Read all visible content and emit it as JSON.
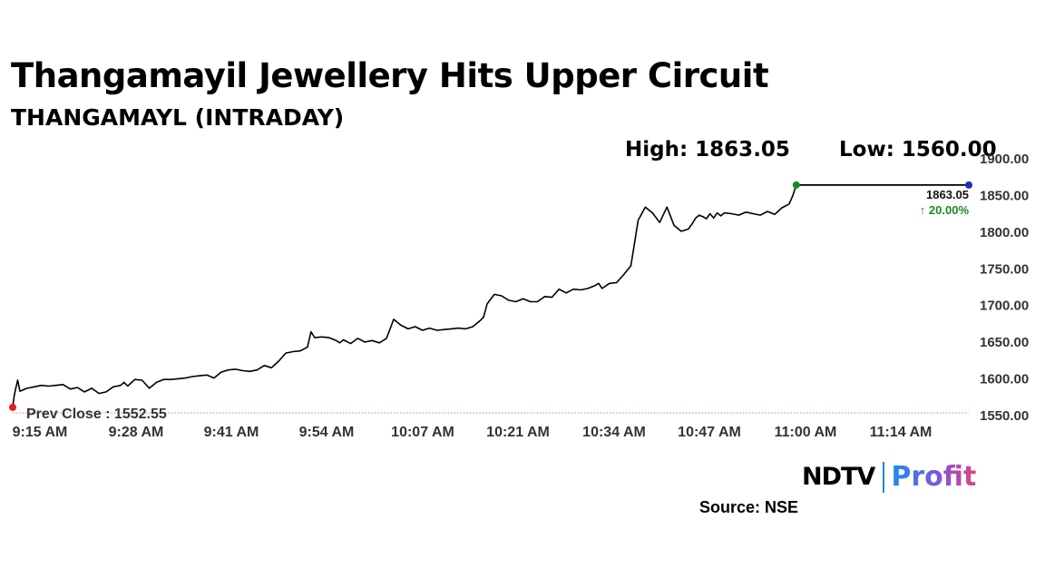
{
  "title": "Thangamayil Jewellery Hits Upper Circuit",
  "subtitle": "THANGAMAYL (INTRADAY)",
  "high_label": "High: 1863.05",
  "low_label": "Low: 1560.00",
  "source": "Source: NSE",
  "brand": {
    "ndtv": "NDTV",
    "profit": "Profit"
  },
  "colors": {
    "line": "#000000",
    "open_marker": "#e01f1f",
    "high_marker": "#1a8a1a",
    "last_marker": "#1a2fb8",
    "prev_close_line": "#e07a7a",
    "change_up": "#1a8a1a"
  },
  "chart_data": {
    "type": "line",
    "title": "Thangamayil Jewellery Hits Upper Circuit",
    "subtitle": "THANGAMAYL (INTRADAY)",
    "x_tick_labels": [
      "9:15 AM",
      "9:28 AM",
      "9:41 AM",
      "9:54 AM",
      "10:07 AM",
      "10:21 AM",
      "10:34 AM",
      "10:47 AM",
      "11:00 AM",
      "11:14 AM"
    ],
    "x_minutes_range": [
      555,
      688
    ],
    "y_ticks": [
      1550,
      1600,
      1650,
      1700,
      1750,
      1800,
      1850,
      1900
    ],
    "y_tick_labels": [
      "1550.00",
      "1600.00",
      "1650.00",
      "1700.00",
      "1750.00",
      "1800.00",
      "1850.00",
      "1900.00"
    ],
    "ylim": [
      1550,
      1900
    ],
    "y_axis_side": "right",
    "grid": false,
    "prev_close": {
      "label": "Prev Close : 1552.55",
      "value": 1552.55
    },
    "last_price": {
      "label": "1863.05",
      "value": 1863.05
    },
    "change": {
      "label": "↑ 20.00%",
      "value": 20.0
    },
    "series": [
      {
        "x_minutes": [
          555,
          555.1,
          555.2,
          555.4,
          555.7,
          556,
          557,
          558,
          559,
          560,
          561,
          562,
          563,
          564,
          565,
          566,
          567,
          568,
          569,
          570,
          570.5,
          571,
          572,
          573,
          574,
          575,
          576,
          577,
          578,
          579,
          580,
          581,
          582,
          583,
          584,
          585,
          586,
          587,
          588,
          589,
          590,
          591,
          592,
          593,
          594,
          595,
          596,
          596.5,
          597,
          598,
          599,
          600,
          600.5,
          601,
          602,
          603,
          604,
          605,
          606,
          607,
          608,
          609,
          610,
          611,
          612,
          613,
          614,
          615,
          616,
          617,
          618,
          619,
          620,
          620.5,
          621,
          622,
          623,
          624,
          625,
          626,
          627,
          628,
          629,
          630,
          631,
          632,
          633,
          634,
          635,
          636,
          636.5,
          637,
          638,
          639,
          640,
          641,
          642,
          643,
          644,
          645,
          646,
          647,
          648,
          649,
          649.5,
          650,
          650.5,
          651,
          651.5,
          652,
          652.5,
          653,
          653.5,
          654,
          655,
          656,
          657,
          658,
          659,
          660,
          661,
          662,
          663,
          663.5,
          664
        ],
        "values": [
          1560,
          1568,
          1575,
          1585,
          1597,
          1582,
          1586,
          1588,
          1590,
          1589,
          1590,
          1591,
          1585,
          1587,
          1581,
          1586,
          1579,
          1581,
          1588,
          1590,
          1594,
          1589,
          1598,
          1597,
          1586,
          1594,
          1598,
          1598,
          1599,
          1600,
          1602,
          1603,
          1604,
          1600,
          1608,
          1611,
          1612,
          1610,
          1609,
          1611,
          1617,
          1614,
          1623,
          1634,
          1636,
          1637,
          1642,
          1663,
          1655,
          1656,
          1655,
          1651,
          1648,
          1652,
          1647,
          1654,
          1649,
          1651,
          1648,
          1654,
          1680,
          1672,
          1667,
          1670,
          1665,
          1668,
          1665,
          1666,
          1667,
          1668,
          1667,
          1670,
          1678,
          1683,
          1701,
          1714,
          1712,
          1706,
          1704,
          1708,
          1704,
          1704,
          1711,
          1710,
          1721,
          1716,
          1721,
          1720,
          1722,
          1726,
          1729,
          1722,
          1729,
          1730,
          1741,
          1753,
          1815,
          1833,
          1825,
          1812,
          1833,
          1808,
          1800,
          1803,
          1810,
          1818,
          1822,
          1820,
          1817,
          1824,
          1818,
          1825,
          1821,
          1825,
          1824,
          1822,
          1826,
          1824,
          1822,
          1827,
          1823,
          1832,
          1837,
          1848,
          1863.05
        ]
      },
      {
        "x_minutes": [
          664,
          688
        ],
        "values": [
          1863.05,
          1863.05
        ]
      }
    ]
  }
}
